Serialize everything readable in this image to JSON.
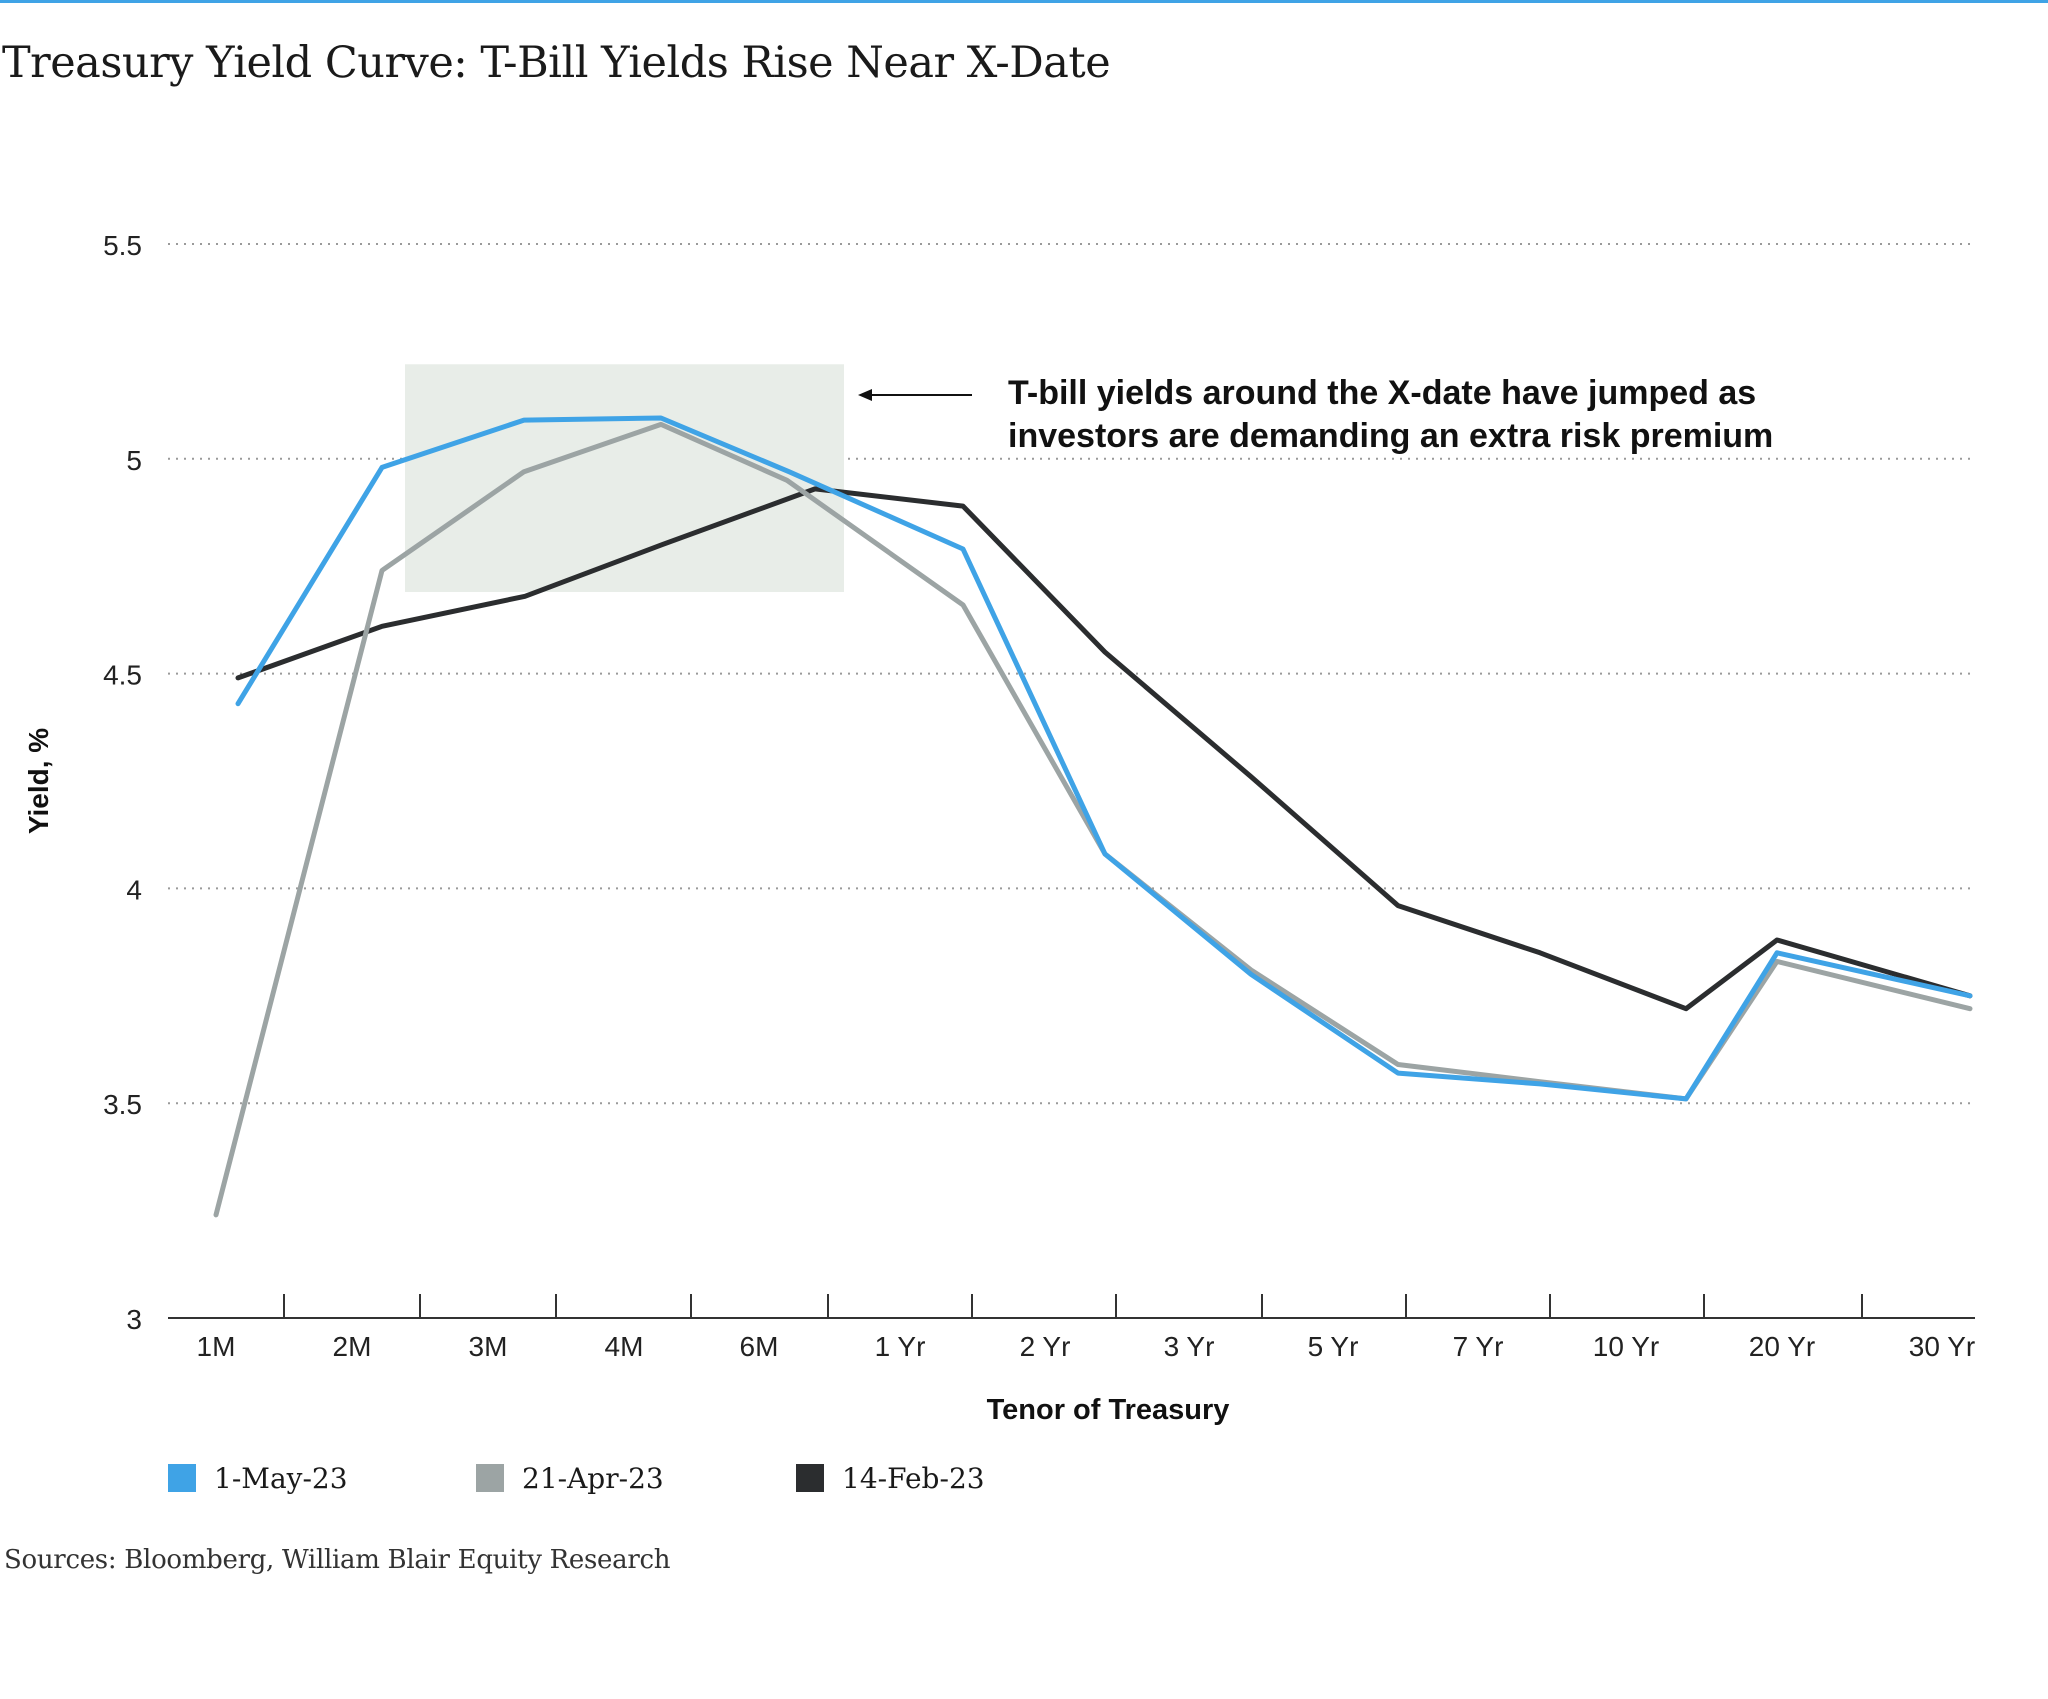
{
  "header": {
    "title": "Treasury Yield Curve: T-Bill Yields Rise Near X-Date"
  },
  "footer": {
    "source": "Sources: Bloomberg, William Blair Equity Research"
  },
  "colors": {
    "accent_rule": "#3fa3e6",
    "highlight_box": "#e8ede8",
    "grid": "#9a9a9a",
    "axis": "#333333"
  },
  "chart_data": {
    "type": "line",
    "title": "Treasury Yield Curve: T-Bill Yields Rise Near X-Date",
    "xlabel": "Tenor of Treasury",
    "ylabel": "Yield, %",
    "categories": [
      "1M",
      "2M",
      "3M",
      "4M",
      "6M",
      "1 Yr",
      "2 Yr",
      "3 Yr",
      "5 Yr",
      "7 Yr",
      "10 Yr",
      "20 Yr",
      "30 Yr"
    ],
    "ylim": [
      3,
      5.5
    ],
    "yticks": [
      "3",
      "3.5",
      "4",
      "4.5",
      "5",
      "5.5"
    ],
    "grid": "horizontal dotted",
    "legend_position": "bottom",
    "series": [
      {
        "name": "1-May-23",
        "color": "#3fa3e6",
        "values": [
          4.43,
          4.98,
          5.09,
          5.095,
          4.97,
          4.79,
          4.08,
          3.8,
          3.57,
          3.545,
          3.51,
          3.85,
          3.75
        ]
      },
      {
        "name": "21-Apr-23",
        "color": "#9ca4a4",
        "values": [
          3.24,
          4.74,
          4.97,
          5.08,
          4.95,
          4.66,
          4.08,
          3.81,
          3.59,
          3.55,
          3.51,
          3.83,
          3.72
        ]
      },
      {
        "name": "14-Feb-23",
        "color": "#2b2d2f",
        "values": [
          4.49,
          4.61,
          4.68,
          4.8,
          4.93,
          4.89,
          4.55,
          4.26,
          3.96,
          3.85,
          3.72,
          3.88,
          3.75
        ]
      }
    ],
    "highlight": {
      "from_category": "3M",
      "to_category": "6M",
      "ymin": 4.69,
      "ymax": 5.22
    },
    "annotation": {
      "lines": [
        "T-bill yields around the X-date have jumped as",
        "investors are demanding an extra risk premium"
      ],
      "arrow": "left"
    }
  }
}
